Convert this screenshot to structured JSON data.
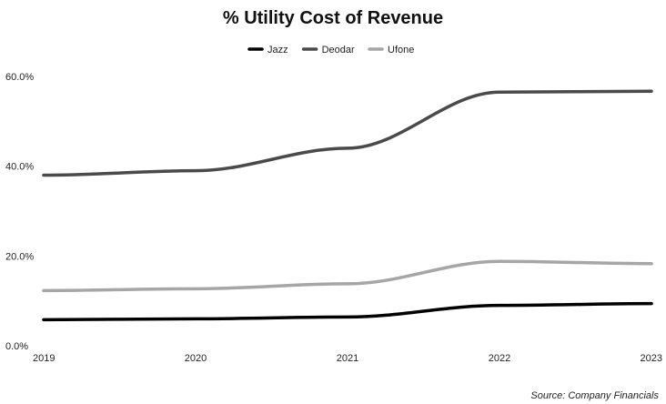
{
  "chart_data": {
    "type": "line",
    "title": "% Utility Cost of Revenue",
    "categories": [
      "2019",
      "2020",
      "2021",
      "2022",
      "2023"
    ],
    "series": [
      {
        "name": "Jazz",
        "color": "#000000",
        "values": [
          5.8,
          6.0,
          6.4,
          9.0,
          9.4
        ]
      },
      {
        "name": "Deodar",
        "color": "#4a4a4a",
        "values": [
          38.0,
          39.0,
          44.0,
          56.5,
          56.7
        ]
      },
      {
        "name": "Ufone",
        "color": "#a6a6a6",
        "values": [
          12.3,
          12.7,
          13.8,
          18.8,
          18.3
        ]
      }
    ],
    "yticks": [
      "0.0%",
      "20.0%",
      "40.0%",
      "60.0%"
    ],
    "ylim": [
      0,
      60
    ],
    "xlabel": "",
    "ylabel": "",
    "grid": false,
    "legend_position": "top-center",
    "source": "Source: Company Financials"
  }
}
